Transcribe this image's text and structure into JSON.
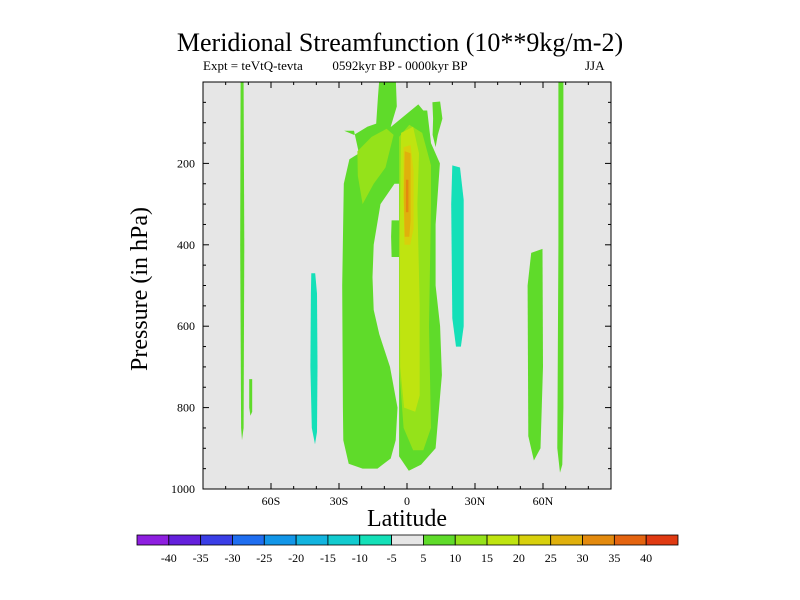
{
  "chart_data": {
    "type": "heatmap",
    "title": "Meridional Streamfunction (10**9kg/m-2)",
    "subtitle_left": "Expt = teVtQ-tevta",
    "subtitle_center": "0592kyr BP - 0000kyr BP",
    "subtitle_right": "JJA",
    "xlabel": "Latitude",
    "ylabel": "Pressure (in hPa)",
    "xlim": [
      -90,
      90
    ],
    "ylim": [
      1000,
      0
    ],
    "x_ticks": [
      {
        "value": -60,
        "label": "60S"
      },
      {
        "value": -30,
        "label": "30S"
      },
      {
        "value": 0,
        "label": "0"
      },
      {
        "value": 30,
        "label": "30N"
      },
      {
        "value": 60,
        "label": "60N"
      }
    ],
    "y_ticks": [
      {
        "value": 200,
        "label": "200"
      },
      {
        "value": 400,
        "label": "400"
      },
      {
        "value": 600,
        "label": "600"
      },
      {
        "value": 800,
        "label": "800"
      },
      {
        "value": 1000,
        "label": "1000"
      }
    ],
    "colorbar": {
      "labels": [
        "-40",
        "-35",
        "-30",
        "-25",
        "-20",
        "-15",
        "-10",
        "-5",
        "5",
        "10",
        "15",
        "20",
        "25",
        "30",
        "35",
        "40"
      ],
      "colors": [
        "#8e1fe0",
        "#6420dc",
        "#3a3ee6",
        "#1f6ef0",
        "#1296e8",
        "#12b4df",
        "#12cbcf",
        "#14e0b8",
        "#e6e6e6",
        "#5fdb2a",
        "#95e21a",
        "#bfe410",
        "#d8d00c",
        "#e0b00c",
        "#e38a0e",
        "#e46410",
        "#e03a12"
      ]
    },
    "filled_regions": [
      {
        "level": 5,
        "color": "#5fdb2a",
        "points": [
          [
            -73.4,
            0
          ],
          [
            -72.1,
            0
          ],
          [
            -71.8,
            400
          ],
          [
            -72.1,
            850
          ],
          [
            -72.8,
            880
          ],
          [
            -73.2,
            850
          ],
          [
            -73.6,
            400
          ]
        ]
      },
      {
        "level": 5,
        "color": "#5fdb2a",
        "points": [
          [
            -69.6,
            730
          ],
          [
            -68.3,
            730
          ],
          [
            -68.3,
            810
          ],
          [
            -69.1,
            820
          ],
          [
            -69.6,
            800
          ]
        ]
      },
      {
        "level": 5,
        "color": "#5fdb2a",
        "points": [
          [
            -27.7,
            120
          ],
          [
            -23.4,
            120
          ],
          [
            -21.4,
            170
          ],
          [
            -19.6,
            200
          ],
          [
            -14.5,
            180
          ],
          [
            -8.0,
            125
          ],
          [
            -4.5,
            60
          ],
          [
            -4.9,
            0
          ],
          [
            -12.3,
            0
          ],
          [
            -12.8,
            35
          ],
          [
            -13.8,
            120
          ],
          [
            -18.3,
            165
          ],
          [
            -25.4,
            190
          ],
          [
            -27.9,
            250
          ],
          [
            -28.6,
            500
          ],
          [
            -28.3,
            800
          ],
          [
            -28.1,
            880
          ],
          [
            -25.7,
            938
          ],
          [
            -19.6,
            950
          ],
          [
            -13.0,
            950
          ],
          [
            -7.2,
            925
          ],
          [
            -5.0,
            880
          ],
          [
            -4.2,
            800
          ],
          [
            -7.5,
            700
          ],
          [
            -12.2,
            620
          ],
          [
            -14.7,
            560
          ],
          [
            -15.2,
            480
          ],
          [
            -14.7,
            400
          ],
          [
            -11.7,
            300
          ],
          [
            -5.5,
            250
          ],
          [
            -3.5,
            250
          ],
          [
            -3.5,
            920
          ],
          [
            0.8,
            955
          ],
          [
            6.2,
            940
          ],
          [
            12.6,
            900
          ],
          [
            15.4,
            720
          ],
          [
            14.6,
            600
          ],
          [
            12.6,
            500
          ],
          [
            12.6,
            350
          ],
          [
            14.5,
            200
          ],
          [
            10.6,
            150
          ],
          [
            8.9,
            70
          ],
          [
            7.2,
            70
          ],
          [
            5.0,
            55
          ],
          [
            0.6,
            75
          ],
          [
            -7.0,
            110
          ],
          [
            -12.5,
            100
          ],
          [
            -17.5,
            110
          ],
          [
            -23.4,
            130
          ]
        ]
      },
      {
        "level": 5,
        "color": "#5fdb2a",
        "points": [
          [
            -6.8,
            340
          ],
          [
            -3.5,
            340
          ],
          [
            -3.5,
            430
          ],
          [
            -6.8,
            430
          ],
          [
            -7.0,
            380
          ]
        ]
      },
      {
        "level": 5,
        "color": "#5fdb2a",
        "points": [
          [
            54.8,
            420
          ],
          [
            59.8,
            410
          ],
          [
            60.0,
            700
          ],
          [
            58.9,
            900
          ],
          [
            56.0,
            930
          ],
          [
            53.5,
            870
          ],
          [
            53.2,
            500
          ]
        ]
      },
      {
        "level": 5,
        "color": "#5fdb2a",
        "points": [
          [
            66.8,
            0
          ],
          [
            69.0,
            0
          ],
          [
            69.0,
            800
          ],
          [
            68.5,
            940
          ],
          [
            67.5,
            960
          ],
          [
            66.3,
            900
          ],
          [
            66.8,
            400
          ]
        ]
      },
      {
        "level": 5,
        "color": "#5fdb2a",
        "points": [
          [
            11.2,
            50
          ],
          [
            14.6,
            48
          ],
          [
            15.6,
            90
          ],
          [
            13.6,
            130
          ],
          [
            12.6,
            160
          ],
          [
            11.3,
            130
          ],
          [
            11.5,
            90
          ]
        ]
      },
      {
        "level": 10,
        "color": "#95e21a",
        "points": [
          [
            -21.9,
            170
          ],
          [
            -15.6,
            135
          ],
          [
            -9.0,
            115
          ],
          [
            -5.9,
            130
          ],
          [
            -9.5,
            210
          ],
          [
            -14.7,
            250
          ],
          [
            -19.6,
            300
          ],
          [
            -21.7,
            230
          ]
        ]
      },
      {
        "level": 10,
        "color": "#95e21a",
        "points": [
          [
            -3.5,
            135
          ],
          [
            1.0,
            105
          ],
          [
            6.7,
            125
          ],
          [
            10.6,
            205
          ],
          [
            10.6,
            300
          ],
          [
            9.7,
            600
          ],
          [
            10.6,
            850
          ],
          [
            7.2,
            905
          ],
          [
            2.7,
            905
          ],
          [
            -1.5,
            850
          ],
          [
            -3.5,
            700
          ]
        ]
      },
      {
        "level": 15,
        "color": "#bfe410",
        "points": [
          [
            -2.6,
            125
          ],
          [
            2.7,
            110
          ],
          [
            5.3,
            175
          ],
          [
            4.6,
            300
          ],
          [
            5.6,
            550
          ],
          [
            5.6,
            770
          ],
          [
            3.6,
            810
          ],
          [
            -1.3,
            800
          ],
          [
            -3.0,
            700
          ],
          [
            -3.2,
            400
          ]
        ]
      },
      {
        "level": 20,
        "color": "#d8d00c",
        "points": [
          [
            -1.5,
            160
          ],
          [
            1.6,
            155
          ],
          [
            2.9,
            220
          ],
          [
            2.9,
            360
          ],
          [
            1.4,
            400
          ],
          [
            -1.1,
            400
          ],
          [
            -1.6,
            280
          ]
        ]
      },
      {
        "level": 25,
        "color": "#e0b00c",
        "points": [
          [
            -1.0,
            170
          ],
          [
            1.6,
            175
          ],
          [
            1.6,
            340
          ],
          [
            1.0,
            380
          ],
          [
            -1.0,
            380
          ],
          [
            -1.4,
            280
          ]
        ]
      },
      {
        "level": 30,
        "color": "#e38a0e",
        "points": [
          [
            -0.5,
            240
          ],
          [
            0.6,
            240
          ],
          [
            0.6,
            320
          ],
          [
            -0.5,
            320
          ]
        ]
      },
      {
        "level": -5,
        "color": "#14e0b8",
        "points": [
          [
            -42.2,
            470
          ],
          [
            -40.5,
            470
          ],
          [
            -39.7,
            520
          ],
          [
            -39.5,
            700
          ],
          [
            -39.7,
            860
          ],
          [
            -40.6,
            890
          ],
          [
            -42.0,
            850
          ],
          [
            -42.6,
            700
          ],
          [
            -42.4,
            520
          ]
        ]
      },
      {
        "level": -5,
        "color": "#14e0b8",
        "points": [
          [
            20.0,
            205
          ],
          [
            23.4,
            210
          ],
          [
            25.0,
            290
          ],
          [
            25.0,
            600
          ],
          [
            23.8,
            650
          ],
          [
            21.6,
            650
          ],
          [
            20.0,
            580
          ],
          [
            19.5,
            300
          ]
        ]
      }
    ]
  }
}
